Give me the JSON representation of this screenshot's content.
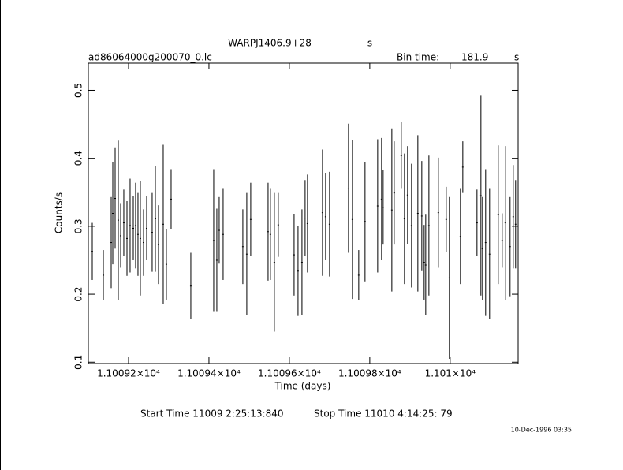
{
  "chart_data": {
    "type": "errorbar",
    "title": "WARPJ1406.9+28",
    "title_unit": "s",
    "file_name": "ad86064000g200070_0.lc",
    "bin_time_label": "Bin time:",
    "bin_time": 181.9,
    "bin_time_unit": "s",
    "x_label": "Time (days)",
    "y_label": "Counts/s",
    "start_time": "Start Time 11009  2:25:13:840",
    "stop_time": "Stop Time 11010  4:14:25: 79",
    "timestamp": "10-Dec-1996 03:35",
    "color": "#000000",
    "xlim": [
      11009.1,
      11010.169
    ],
    "ylim": [
      0.098,
      0.54
    ],
    "xticks": [
      {
        "value": 11009.2,
        "label": "1.10092×10⁴"
      },
      {
        "value": 11009.4,
        "label": "1.10094×10⁴"
      },
      {
        "value": 11009.6,
        "label": "1.10096×10⁴"
      },
      {
        "value": 11009.8,
        "label": "1.10098×10⁴"
      },
      {
        "value": 11010.0,
        "label": "1.101×10⁴"
      }
    ],
    "yticks": [
      0.1,
      0.2,
      0.3,
      0.4,
      0.5
    ],
    "x": [
      11009.1098,
      11009.1373,
      11009.1569,
      11009.1608,
      11009.1667,
      11009.1745,
      11009.1804,
      11009.1882,
      11009.1961,
      11009.2039,
      11009.2118,
      11009.2176,
      11009.2235,
      11009.2294,
      11009.2373,
      11009.2451,
      11009.2588,
      11009.2667,
      11009.2745,
      11009.2863,
      11009.2941,
      11009.3059,
      11009.3549,
      11009.4118,
      11009.4196,
      11009.4255,
      11009.4353,
      11009.4843,
      11009.4941,
      11009.5039,
      11009.5471,
      11009.5529,
      11009.5627,
      11009.5725,
      11009.6118,
      11009.6216,
      11009.6314,
      11009.6392,
      11009.6451,
      11009.6824,
      11009.6902,
      11009.7,
      11009.7471,
      11009.7569,
      11009.7725,
      11009.7882,
      11009.8196,
      11009.8294,
      11009.8333,
      11009.8549,
      11009.8608,
      11009.8784,
      11009.8863,
      11009.8941,
      11009.9039,
      11009.9196,
      11009.9294,
      11009.9353,
      11009.9392,
      11009.9471,
      11009.9706,
      11009.9902,
      11009.998,
      11010.0255,
      11010.0314,
      11010.0667,
      11010.0765,
      11010.0804,
      11010.0882,
      11010.098,
      11010.1196,
      11010.1294,
      11010.1373,
      11010.149,
      11010.1569,
      11010.1627
    ],
    "values": [
      0.263,
      0.228,
      0.276,
      0.319,
      0.341,
      0.309,
      0.286,
      0.305,
      0.282,
      0.301,
      0.297,
      0.301,
      0.288,
      0.282,
      0.276,
      0.297,
      0.291,
      0.311,
      0.273,
      0.303,
      0.244,
      0.34,
      0.212,
      0.279,
      0.25,
      0.294,
      0.288,
      0.27,
      0.259,
      0.31,
      0.292,
      0.288,
      0.247,
      0.302,
      0.258,
      0.234,
      0.247,
      0.312,
      0.304,
      0.32,
      0.314,
      0.303,
      0.356,
      0.31,
      0.228,
      0.307,
      0.33,
      0.34,
      0.328,
      0.324,
      0.349,
      0.404,
      0.311,
      0.346,
      0.301,
      0.319,
      0.315,
      0.247,
      0.243,
      0.301,
      0.32,
      0.31,
      0.224,
      0.285,
      0.387,
      0.305,
      0.345,
      0.267,
      0.276,
      0.259,
      0.317,
      0.279,
      0.305,
      0.27,
      0.314,
      0.303
    ],
    "errors": [
      0.042,
      0.037,
      0.067,
      0.075,
      0.074,
      0.117,
      0.047,
      0.049,
      0.055,
      0.069,
      0.047,
      0.063,
      0.061,
      0.084,
      0.049,
      0.047,
      0.058,
      0.078,
      0.058,
      0.117,
      0.052,
      0.044,
      0.049,
      0.105,
      0.076,
      0.049,
      0.067,
      0.055,
      0.09,
      0.054,
      0.072,
      0.067,
      0.102,
      0.047,
      0.06,
      0.066,
      0.078,
      0.056,
      0.072,
      0.093,
      0.064,
      0.077,
      0.095,
      0.117,
      0.037,
      0.088,
      0.098,
      0.09,
      0.055,
      0.12,
      0.076,
      0.049,
      0.096,
      0.072,
      0.091,
      0.115,
      0.081,
      0.055,
      0.074,
      0.103,
      0.081,
      0.048,
      0.119,
      0.07,
      0.038,
      0.049,
      0.147,
      0.076,
      0.108,
      0.096,
      0.102,
      0.04,
      0.113,
      0.073,
      0.076,
      0.065
    ]
  }
}
